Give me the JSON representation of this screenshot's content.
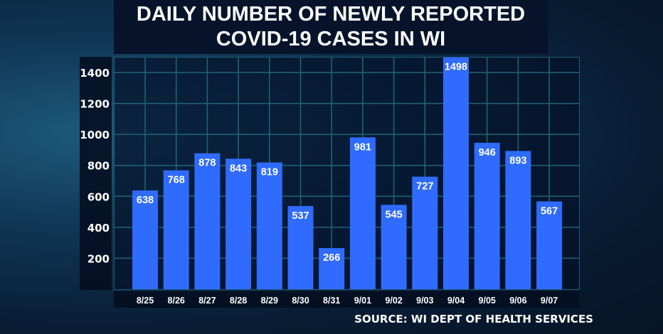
{
  "chart_data": {
    "type": "bar",
    "title": "DAILY NUMBER OF NEWLY REPORTED COVID-19 CASES IN WI",
    "title_lines": [
      "DAILY NUMBER OF NEWLY REPORTED",
      "COVID-19 CASES IN WI"
    ],
    "categories": [
      "8/25",
      "8/26",
      "8/27",
      "8/28",
      "8/29",
      "8/30",
      "8/31",
      "9/01",
      "9/02",
      "9/03",
      "9/04",
      "9/05",
      "9/06",
      "9/07"
    ],
    "values": [
      638,
      768,
      878,
      843,
      819,
      537,
      266,
      981,
      545,
      727,
      1498,
      946,
      893,
      567
    ],
    "yticks": [
      200,
      400,
      600,
      800,
      1000,
      1200,
      1400
    ],
    "ylim": [
      0,
      1500
    ],
    "grid": true,
    "bar_color": "#2f6bff",
    "data_labels": true,
    "source": "SOURCE: WI DEPT OF HEALTH SERVICES"
  }
}
